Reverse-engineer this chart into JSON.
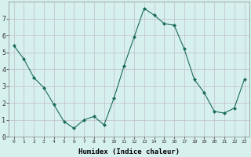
{
  "x": [
    0,
    1,
    2,
    3,
    4,
    5,
    6,
    7,
    8,
    9,
    10,
    11,
    12,
    13,
    14,
    15,
    16,
    17,
    18,
    19,
    20,
    21,
    22,
    23
  ],
  "y": [
    5.4,
    4.6,
    3.5,
    2.9,
    1.9,
    0.9,
    0.5,
    1.0,
    1.2,
    0.7,
    2.3,
    4.2,
    5.9,
    7.6,
    7.2,
    6.7,
    6.6,
    5.2,
    3.4,
    2.6,
    1.5,
    1.4,
    1.7,
    3.4
  ],
  "line_color": "#1a6b5a",
  "marker": "D",
  "marker_size": 2,
  "bg_color": "#d6f0ee",
  "grid_color_major": "#c0b0c0",
  "grid_color_minor": "#cce8e6",
  "xlabel": "Humidex (Indice chaleur)",
  "xlabel_fontsize": 6.5,
  "ytick_fontsize": 6,
  "xtick_fontsize": 4.5,
  "yticks": [
    0,
    1,
    2,
    3,
    4,
    5,
    6,
    7
  ],
  "xticks": [
    0,
    1,
    2,
    3,
    4,
    5,
    6,
    7,
    8,
    9,
    10,
    11,
    12,
    13,
    14,
    15,
    16,
    17,
    18,
    19,
    20,
    21,
    22,
    23
  ],
  "xlim": [
    -0.5,
    23.5
  ],
  "ylim": [
    0,
    8
  ]
}
